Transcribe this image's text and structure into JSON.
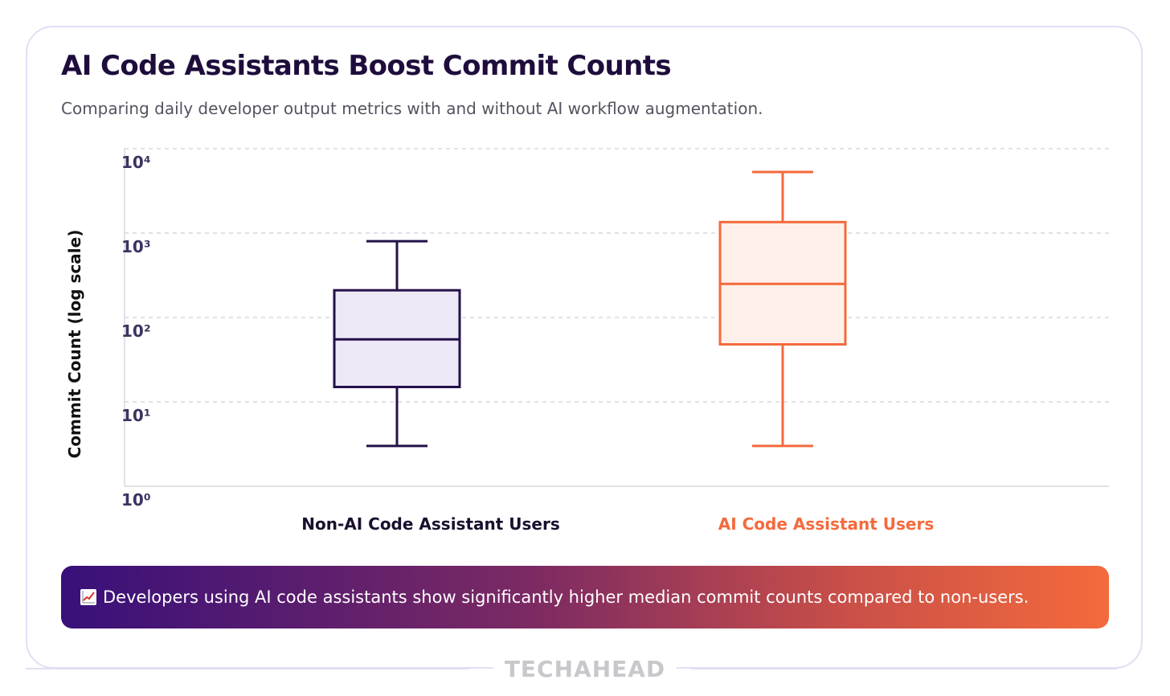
{
  "header": {
    "title": "AI Code Assistants Boost Commit Counts",
    "subtitle": "Comparing daily developer output metrics with and without AI workflow augmentation."
  },
  "chart_data": {
    "type": "box",
    "yscale": "log",
    "ylabel": "Commit Count (log scale)",
    "ylim": [
      1,
      10000
    ],
    "yticks": [
      {
        "value": 10000,
        "label": "10⁴"
      },
      {
        "value": 1000,
        "label": "10³"
      },
      {
        "value": 100,
        "label": "10²"
      },
      {
        "value": 10,
        "label": "10¹"
      },
      {
        "value": 1,
        "label": "10⁰"
      }
    ],
    "grid": true,
    "categories": [
      "Non-AI Code Assistant Users",
      "AI Code Assistant Users"
    ],
    "series": [
      {
        "category": "Non-AI Code Assistant Users",
        "min": 3,
        "q1": 15,
        "median": 55,
        "q3": 210,
        "max": 800,
        "color": "#24114a",
        "fill": "#ede8f6"
      },
      {
        "category": "AI Code Assistant Users",
        "min": 3,
        "q1": 48,
        "median": 250,
        "q3": 1350,
        "max": 5300,
        "color": "#f46a3c",
        "fill": "#fff0ea"
      }
    ]
  },
  "insight": {
    "icon": "chart-increasing-icon",
    "text": "Developers using AI code assistants show significantly higher median commit counts compared to non-users."
  },
  "footer": {
    "brand": "TECHAHEAD"
  },
  "colors": {
    "title": "#1e0d3c",
    "accent": "#f46a3c",
    "primary": "#24114a",
    "border": "#e3def3"
  }
}
